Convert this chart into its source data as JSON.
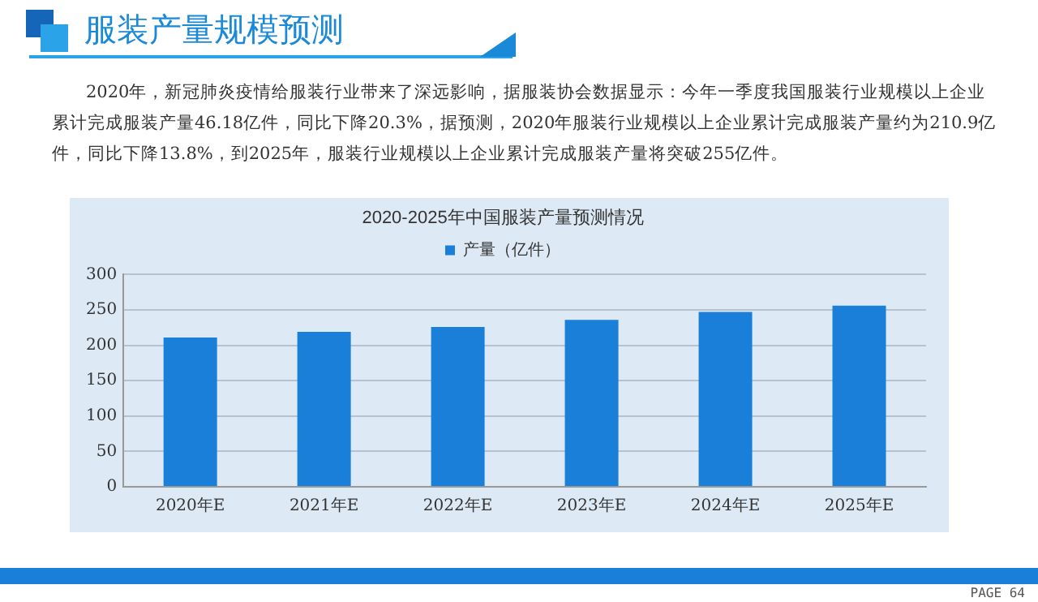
{
  "chart_data": {
    "type": "bar",
    "title": "服装产量规模预测",
    "subtitle": "2020-2025年中国服装产量预测情况",
    "annotations": [
      "2020年，新冠肺炎疫情给服装行业带来了深远影响，据服装协会数据显示：今年一季度我国服装行业规模以上企业累计完成服装产量46.18亿件，同比下降20.3%，据预测，2020年服装行业规模以上企业累计完成服装产量约为210.9亿件，同比下降13.8%，到2025年，服装行业规模以上企业累计完成服装产量将突破255亿件。",
      "PAGE 64"
    ],
    "categories": [
      "2020年E",
      "2021年E",
      "2022年E",
      "2023年E",
      "2024年E",
      "2025年E"
    ],
    "series": [
      {
        "name": "产量（亿件）",
        "color": "#1a7fd8",
        "values": [
          211,
          219,
          226,
          236,
          247,
          256
        ]
      }
    ],
    "ylim": [
      0,
      300
    ],
    "yticks": [
      0,
      50,
      100,
      150,
      200,
      250,
      300
    ],
    "grid": "y",
    "legend": "top"
  }
}
